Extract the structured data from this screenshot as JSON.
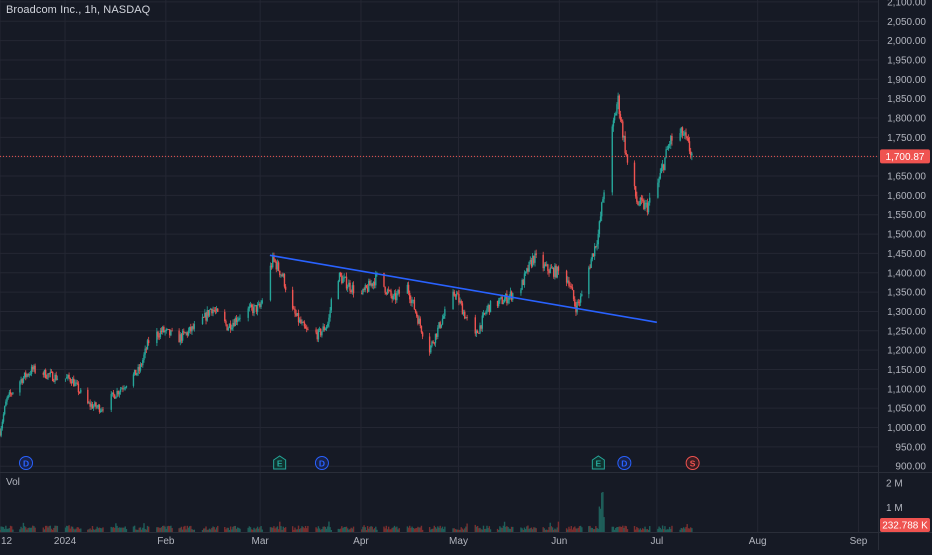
{
  "header": {
    "title": "Broadcom Inc., 1h, NASDAQ"
  },
  "volume_pane": {
    "label": "Vol",
    "current_value_label": "232.788 K",
    "axis_labels": [
      "2 M",
      "1 M"
    ]
  },
  "colors": {
    "background": "#161a25",
    "grid": "#242733",
    "up": "#26a69a",
    "down": "#ef5350",
    "trendline": "#2962ff",
    "price_line": "#ef5350",
    "event_dividend": "#2962ff",
    "event_earnings": "#26a69a",
    "event_split": "#ef5350"
  },
  "chart_data": [
    {
      "type": "candlestick",
      "title": "Broadcom Inc., 1h, NASDAQ",
      "y_ticks": [
        "2,100.00",
        "2,050.00",
        "2,000.00",
        "1,950.00",
        "1,900.00",
        "1,850.00",
        "1,800.00",
        "1,750.00",
        "1,700.00",
        "1,650.00",
        "1,600.00",
        "1,550.00",
        "1,500.00",
        "1,450.00",
        "1,400.00",
        "1,350.00",
        "1,300.00",
        "1,250.00",
        "1,200.00",
        "1,150.00",
        "1,100.00",
        "1,050.00",
        "1,000.00",
        "950.00",
        "900.00"
      ],
      "ylim": [
        885,
        2105
      ],
      "x_ticks": [
        {
          "label": "12",
          "date": "2023-12-12"
        },
        {
          "label": "2024",
          "date": "2024-01-01"
        },
        {
          "label": "Feb",
          "date": "2024-02-01"
        },
        {
          "label": "Mar",
          "date": "2024-03-01"
        },
        {
          "label": "Apr",
          "date": "2024-04-01"
        },
        {
          "label": "May",
          "date": "2024-05-01"
        },
        {
          "label": "Jun",
          "date": "2024-06-01"
        },
        {
          "label": "Jul",
          "date": "2024-07-01"
        },
        {
          "label": "Aug",
          "date": "2024-08-01"
        },
        {
          "label": "Sep",
          "date": "2024-09-01"
        }
      ],
      "xlim": [
        "2023-12-12",
        "2024-09-07"
      ],
      "last_price": 1700.87,
      "last_price_label": "1,700.87",
      "price_path": [
        [
          "2023-12-12",
          990
        ],
        [
          "2023-12-14",
          1070
        ],
        [
          "2023-12-18",
          1120
        ],
        [
          "2023-12-22",
          1150
        ],
        [
          "2023-12-29",
          1130
        ],
        [
          "2024-01-03",
          1125
        ],
        [
          "2024-01-08",
          1060
        ],
        [
          "2024-01-12",
          1050
        ],
        [
          "2024-01-18",
          1100
        ],
        [
          "2024-01-24",
          1150
        ],
        [
          "2024-01-27",
          1230
        ],
        [
          "2024-01-31",
          1250
        ],
        [
          "2024-02-05",
          1230
        ],
        [
          "2024-02-12",
          1270
        ],
        [
          "2024-02-15",
          1310
        ],
        [
          "2024-02-20",
          1260
        ],
        [
          "2024-02-25",
          1300
        ],
        [
          "2024-03-01",
          1310
        ],
        [
          "2024-03-03",
          1380
        ],
        [
          "2024-03-05",
          1435
        ],
        [
          "2024-03-08",
          1390
        ],
        [
          "2024-03-11",
          1300
        ],
        [
          "2024-03-15",
          1250
        ],
        [
          "2024-03-19",
          1240
        ],
        [
          "2024-03-22",
          1270
        ],
        [
          "2024-03-24",
          1400
        ],
        [
          "2024-03-28",
          1370
        ],
        [
          "2024-04-01",
          1340
        ],
        [
          "2024-04-06",
          1390
        ],
        [
          "2024-04-11",
          1330
        ],
        [
          "2024-04-15",
          1370
        ],
        [
          "2024-04-19",
          1270
        ],
        [
          "2024-04-22",
          1200
        ],
        [
          "2024-04-26",
          1280
        ],
        [
          "2024-04-30",
          1350
        ],
        [
          "2024-05-03",
          1290
        ],
        [
          "2024-05-06",
          1230
        ],
        [
          "2024-05-10",
          1310
        ],
        [
          "2024-05-15",
          1330
        ],
        [
          "2024-05-20",
          1360
        ],
        [
          "2024-05-24",
          1440
        ],
        [
          "2024-05-28",
          1410
        ],
        [
          "2024-06-01",
          1400
        ],
        [
          "2024-06-04",
          1380
        ],
        [
          "2024-06-06",
          1310
        ],
        [
          "2024-06-08",
          1340
        ],
        [
          "2024-06-10",
          1410
        ],
        [
          "2024-06-13",
          1500
        ],
        [
          "2024-06-16",
          1700
        ],
        [
          "2024-06-19",
          1850
        ],
        [
          "2024-06-22",
          1680
        ],
        [
          "2024-06-25",
          1580
        ],
        [
          "2024-06-28",
          1570
        ],
        [
          "2024-07-01",
          1620
        ],
        [
          "2024-07-05",
          1740
        ],
        [
          "2024-07-09",
          1760
        ],
        [
          "2024-07-12",
          1700
        ]
      ],
      "trendline": {
        "start": [
          "2024-03-04",
          1445
        ],
        "end": [
          "2024-07-01",
          1272
        ]
      }
    },
    {
      "type": "bar",
      "title": "Vol",
      "ylim": [
        0,
        2400000
      ],
      "y_ticks": [
        "2 M",
        "1 M"
      ],
      "last_value_label": "232.788 K"
    }
  ],
  "events": [
    {
      "letter": "D",
      "date": "2023-12-20",
      "kind": "dividend"
    },
    {
      "letter": "E",
      "date": "2024-03-07",
      "kind": "earnings"
    },
    {
      "letter": "D",
      "date": "2024-03-20",
      "kind": "dividend"
    },
    {
      "letter": "E",
      "date": "2024-06-13",
      "kind": "earnings"
    },
    {
      "letter": "D",
      "date": "2024-06-21",
      "kind": "dividend"
    },
    {
      "letter": "S",
      "date": "2024-07-12",
      "kind": "split"
    }
  ]
}
